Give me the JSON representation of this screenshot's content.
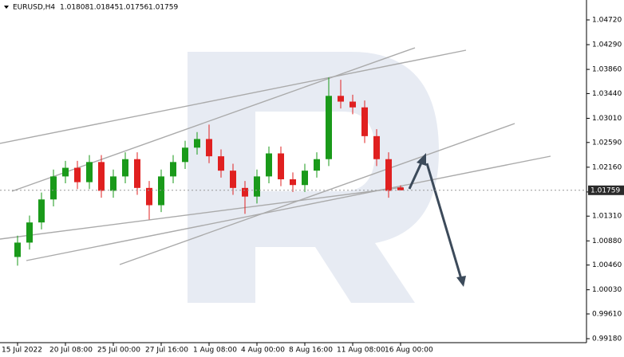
{
  "chart_data": {
    "type": "candlestick",
    "title": "EURUSD,H4",
    "x": [
      "15 Jul 2022",
      null,
      null,
      null,
      "20 Jul 08:00",
      null,
      null,
      null,
      "25 Jul 00:00",
      null,
      null,
      null,
      "27 Jul 16:00",
      null,
      null,
      null,
      "1 Aug 08:00",
      null,
      null,
      null,
      "4 Aug 00:00",
      null,
      null,
      null,
      "8 Aug 16:00",
      null,
      null,
      null,
      "11 Aug 08:00",
      null,
      null,
      null,
      "16 Aug 00:00"
    ],
    "open": [
      1.006,
      1.0085,
      1.012,
      1.016,
      1.02,
      1.0215,
      1.019,
      1.0225,
      1.0175,
      1.02,
      1.023,
      1.018,
      1.015,
      1.02,
      1.0225,
      1.025,
      1.0265,
      1.0235,
      1.021,
      1.018,
      1.0165,
      1.02,
      1.024,
      1.0195,
      1.0185,
      1.021,
      1.023,
      1.034,
      1.033,
      1.032,
      1.027,
      1.023,
      1.01808
    ],
    "high": [
      1.0097,
      1.0132,
      1.0172,
      1.0212,
      1.0227,
      1.0227,
      1.0237,
      1.0237,
      1.0212,
      1.0242,
      1.0242,
      1.0192,
      1.0212,
      1.0237,
      1.0262,
      1.0277,
      1.029,
      1.0247,
      1.0222,
      1.0192,
      1.0212,
      1.0252,
      1.0252,
      1.0207,
      1.0222,
      1.0242,
      1.0372,
      1.0368,
      1.0342,
      1.0332,
      1.0282,
      1.0242,
      1.01845
    ],
    "low": [
      1.0045,
      1.0073,
      1.0108,
      1.0148,
      1.0188,
      1.0178,
      1.0178,
      1.0163,
      1.0163,
      1.0188,
      1.0168,
      1.0125,
      1.0138,
      1.0188,
      1.0213,
      1.0238,
      1.0223,
      1.0198,
      1.0168,
      1.0135,
      1.0153,
      1.0188,
      1.0183,
      1.0173,
      1.0173,
      1.0198,
      1.0218,
      1.0318,
      1.0308,
      1.0258,
      1.0218,
      1.0163,
      1.01756
    ],
    "close": [
      1.0085,
      1.012,
      1.016,
      1.02,
      1.0215,
      1.019,
      1.0225,
      1.0175,
      1.02,
      1.023,
      1.018,
      1.015,
      1.02,
      1.0225,
      1.025,
      1.0265,
      1.0235,
      1.021,
      1.018,
      1.0165,
      1.02,
      1.024,
      1.0195,
      1.0185,
      1.021,
      1.023,
      1.034,
      1.033,
      1.032,
      1.027,
      1.023,
      1.0175,
      1.01759
    ],
    "up_color": "#1a9a1a",
    "down_color": "#e02020",
    "ylim": [
      0.99111,
      1.05066
    ],
    "yticks": [
      {
        "value": 1.0472,
        "label": "1.04720"
      },
      {
        "value": 1.0429,
        "label": "1.04290"
      },
      {
        "value": 1.0386,
        "label": "1.03860"
      },
      {
        "value": 1.0344,
        "label": "1.03440"
      },
      {
        "value": 1.0301,
        "label": "1.03010"
      },
      {
        "value": 1.0259,
        "label": "1.02590"
      },
      {
        "value": 1.0216,
        "label": "1.02160"
      },
      {
        "value": 1.0173,
        "label": "1.01730"
      },
      {
        "value": 1.0131,
        "label": "1.01310"
      },
      {
        "value": 1.0088,
        "label": "1.00880"
      },
      {
        "value": 1.0046,
        "label": "1.00460"
      },
      {
        "value": 1.0003,
        "label": "1.00030"
      },
      {
        "value": 0.9961,
        "label": "0.99610"
      },
      {
        "value": 0.9918,
        "label": "0.99180"
      }
    ]
  }
}
